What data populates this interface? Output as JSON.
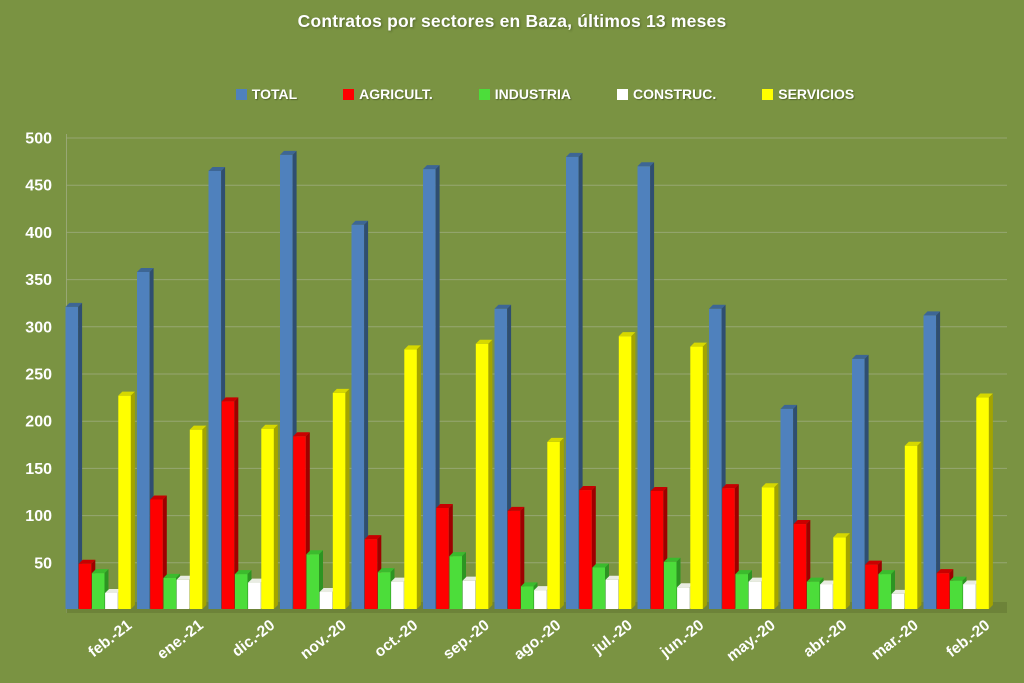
{
  "title": "Contratos por sectores en Baza, últimos 13 meses",
  "colors": {
    "background": "#7a9342",
    "gridline": "#a0ad82",
    "axis_line": "#a0ad82",
    "floor": "#6d8339",
    "text": "#ffffff"
  },
  "chart_data": {
    "type": "bar",
    "title": "Contratos por sectores en Baza, últimos 13 meses",
    "xlabel": "",
    "ylabel": "",
    "grid": true,
    "legend_position": "top",
    "ylim": [
      0,
      500
    ],
    "y_ticks": [
      50,
      100,
      150,
      200,
      250,
      300,
      350,
      400,
      450,
      500
    ],
    "categories": [
      "feb.-21",
      "ene.-21",
      "dic.-20",
      "nov.-20",
      "oct.-20",
      "sep.-20",
      "ago.-20",
      "jul.-20",
      "jun.-20",
      "may.-20",
      "abr.-20",
      "mar.-20",
      "feb.-20"
    ],
    "series": [
      {
        "name": "TOTAL",
        "key": "total",
        "color": "#4f81bd",
        "side_color": "#2f4e71",
        "top_color": "#3d6695",
        "values": [
          320,
          357,
          464,
          481,
          407,
          466,
          318,
          479,
          469,
          318,
          212,
          265,
          311
        ]
      },
      {
        "name": "AGRICULT.",
        "key": "agricult",
        "color": "#fe0000",
        "side_color": "#9e0000",
        "top_color": "#c90000",
        "values": [
          48,
          116,
          220,
          183,
          74,
          107,
          104,
          126,
          125,
          128,
          90,
          47,
          38
        ]
      },
      {
        "name": "INDUSTRIA",
        "key": "industria",
        "color": "#4cdd3a",
        "side_color": "#2d9422",
        "top_color": "#3bbb2d",
        "values": [
          38,
          33,
          37,
          58,
          39,
          56,
          24,
          44,
          50,
          37,
          29,
          37,
          30
        ]
      },
      {
        "name": "CONSTRUC.",
        "key": "construc",
        "color": "#ffffff",
        "side_color": "#c9cfc0",
        "top_color": "#e9ece2",
        "values": [
          17,
          31,
          28,
          18,
          29,
          30,
          20,
          31,
          23,
          29,
          26,
          16,
          26
        ]
      },
      {
        "name": "SERVICIOS",
        "key": "servicios",
        "color": "#ffff00",
        "side_color": "#a3a400",
        "top_color": "#d6d800",
        "values": [
          226,
          190,
          191,
          229,
          275,
          281,
          177,
          289,
          278,
          129,
          76,
          173,
          224
        ]
      }
    ]
  }
}
